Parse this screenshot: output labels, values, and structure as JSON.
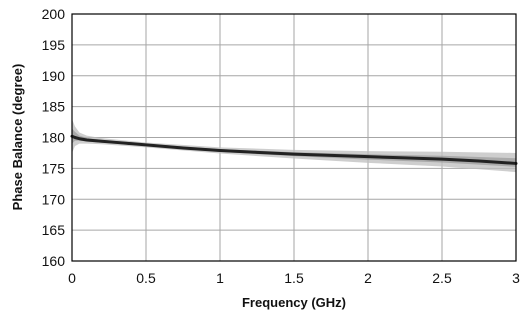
{
  "chart_data": {
    "type": "line",
    "title": "",
    "xlabel": "Frequency (GHz)",
    "ylabel": "Phase Balance (degree)",
    "xlim": [
      0,
      3
    ],
    "ylim": [
      160,
      200
    ],
    "x_ticks": [
      0,
      0.5,
      1,
      1.5,
      2,
      2.5,
      3
    ],
    "x_tick_labels": [
      "0",
      "0.5",
      "1",
      "1.5",
      "2",
      "2.5",
      "3"
    ],
    "y_ticks": [
      160,
      165,
      170,
      175,
      180,
      185,
      190,
      195,
      200
    ],
    "y_tick_labels": [
      "160",
      "165",
      "170",
      "175",
      "180",
      "185",
      "190",
      "195",
      "200"
    ],
    "grid": true,
    "legend": "none",
    "series_color": "#222222",
    "band_color": "#bdbdbd",
    "series": [
      {
        "x": [
          0.0,
          0.02,
          0.05,
          0.1,
          0.2,
          0.3,
          0.4,
          0.5,
          0.75,
          1.0,
          1.25,
          1.5,
          1.75,
          2.0,
          2.25,
          2.5,
          2.75,
          3.0
        ],
        "values": [
          180.2,
          180.0,
          179.8,
          179.6,
          179.4,
          179.2,
          179.0,
          178.8,
          178.3,
          177.9,
          177.6,
          177.3,
          177.1,
          176.9,
          176.7,
          176.5,
          176.2,
          175.8
        ]
      }
    ],
    "band": {
      "x": [
        0.0,
        0.02,
        0.05,
        0.1,
        0.2,
        0.5,
        1.0,
        1.5,
        2.0,
        2.5,
        3.0
      ],
      "upper": [
        183.0,
        181.8,
        180.8,
        180.3,
        179.9,
        179.2,
        178.4,
        178.0,
        177.8,
        177.7,
        177.5
      ],
      "lower": [
        177.5,
        178.6,
        179.0,
        179.0,
        178.9,
        178.4,
        177.4,
        176.6,
        175.9,
        175.3,
        174.4
      ]
    }
  }
}
